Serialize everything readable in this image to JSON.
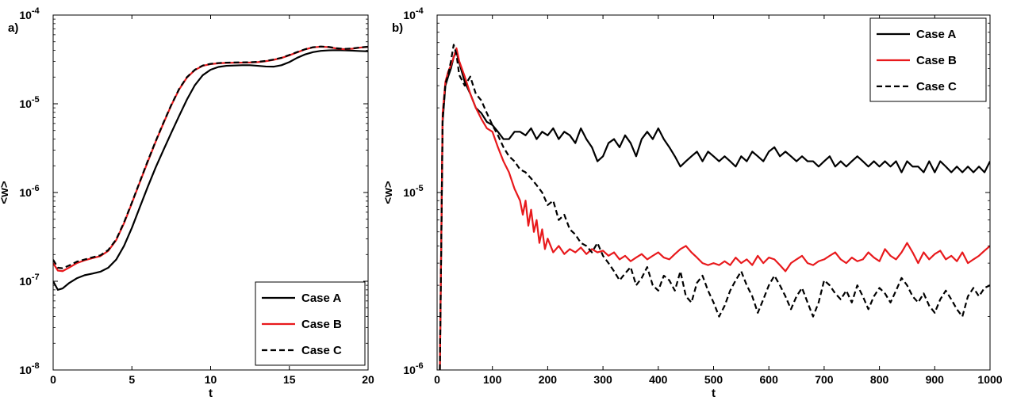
{
  "chart_data": [
    {
      "panel": "a)",
      "type": "line",
      "xlabel": "t",
      "ylabel": "<w>",
      "xlim": [
        0,
        20
      ],
      "ylim": [
        1e-08,
        0.0001
      ],
      "yscale": "log",
      "xticks": [
        "0",
        "5",
        "10",
        "15",
        "20"
      ],
      "yticks": [
        {
          "base": "10",
          "exp": "-8"
        },
        {
          "base": "10",
          "exp": "-7"
        },
        {
          "base": "10",
          "exp": "-6"
        },
        {
          "base": "10",
          "exp": "-5"
        },
        {
          "base": "10",
          "exp": "-4"
        }
      ],
      "legend_position": "bottom-right",
      "grid": false,
      "series": [
        {
          "name": "Case A",
          "color": "#000000",
          "dash": "solid",
          "x": [
            0,
            0.3,
            0.6,
            1,
            1.5,
            2,
            2.5,
            3,
            3.5,
            4,
            4.5,
            5,
            5.5,
            6,
            6.5,
            7,
            7.5,
            8,
            8.5,
            9,
            9.5,
            10,
            10.5,
            11,
            11.5,
            12,
            12.5,
            13,
            13.5,
            14,
            14.5,
            15,
            15.5,
            16,
            16.5,
            17,
            17.5,
            18,
            18.5,
            19,
            19.5,
            20
          ],
          "y": [
            1e-07,
            8e-08,
            8.3e-08,
            9.5e-08,
            1.08e-07,
            1.17e-07,
            1.22e-07,
            1.28e-07,
            1.42e-07,
            1.75e-07,
            2.5e-07,
            4e-07,
            6.8e-07,
            1.15e-06,
            1.9e-06,
            3e-06,
            4.7e-06,
            7.3e-06,
            1.12e-05,
            1.62e-05,
            2.1e-05,
            2.42e-05,
            2.6e-05,
            2.68e-05,
            2.7e-05,
            2.72e-05,
            2.72e-05,
            2.68e-05,
            2.63e-05,
            2.62e-05,
            2.72e-05,
            2.95e-05,
            3.3e-05,
            3.6e-05,
            3.82e-05,
            3.95e-05,
            4e-05,
            4.02e-05,
            4e-05,
            3.97e-05,
            3.93e-05,
            3.9e-05
          ]
        },
        {
          "name": "Case B",
          "color": "#e8191c",
          "dash": "solid",
          "x": [
            0,
            0.3,
            0.6,
            1,
            1.5,
            2,
            2.5,
            3,
            3.5,
            4,
            4.5,
            5,
            5.5,
            6,
            6.5,
            7,
            7.5,
            8,
            8.5,
            9,
            9.5,
            10,
            10.5,
            11,
            11.5,
            12,
            12.5,
            13,
            13.5,
            14,
            14.5,
            15,
            15.5,
            16,
            16.5,
            17,
            17.5,
            18,
            18.5,
            19,
            19.5,
            20
          ],
          "y": [
            1.6e-07,
            1.32e-07,
            1.3e-07,
            1.42e-07,
            1.6e-07,
            1.72e-07,
            1.82e-07,
            1.92e-07,
            2.2e-07,
            2.9e-07,
            4.5e-07,
            7.6e-07,
            1.3e-06,
            2.2e-06,
            3.7e-06,
            6e-06,
            9.6e-06,
            1.45e-05,
            1.98e-05,
            2.4e-05,
            2.68e-05,
            2.8e-05,
            2.86e-05,
            2.89e-05,
            2.9e-05,
            2.91e-05,
            2.92e-05,
            2.95e-05,
            3.02e-05,
            3.13e-05,
            3.28e-05,
            3.52e-05,
            3.8e-05,
            4.1e-05,
            4.32e-05,
            4.4e-05,
            4.35e-05,
            4.2e-05,
            4.12e-05,
            4.18e-05,
            4.3e-05,
            4.38e-05
          ]
        },
        {
          "name": "Case C",
          "color": "#000000",
          "dash": "dashed",
          "x": [
            0,
            0.3,
            0.6,
            1,
            1.5,
            2,
            2.5,
            3,
            3.5,
            4,
            4.5,
            5,
            5.5,
            6,
            6.5,
            7,
            7.5,
            8,
            8.5,
            9,
            9.5,
            10,
            10.5,
            11,
            11.5,
            12,
            12.5,
            13,
            13.5,
            14,
            14.5,
            15,
            15.5,
            16,
            16.5,
            17,
            17.5,
            18,
            18.5,
            19,
            19.5,
            20
          ],
          "y": [
            1.75e-07,
            1.42e-07,
            1.4e-07,
            1.5e-07,
            1.66e-07,
            1.76e-07,
            1.86e-07,
            1.96e-07,
            2.25e-07,
            2.95e-07,
            4.6e-07,
            7.7e-07,
            1.32e-06,
            2.25e-06,
            3.75e-06,
            6.1e-06,
            9.7e-06,
            1.47e-05,
            2e-05,
            2.42e-05,
            2.7e-05,
            2.82e-05,
            2.88e-05,
            2.91e-05,
            2.92e-05,
            2.93e-05,
            2.94e-05,
            2.97e-05,
            3.04e-05,
            3.15e-05,
            3.3e-05,
            3.55e-05,
            3.83e-05,
            4.12e-05,
            4.34e-05,
            4.42e-05,
            4.37e-05,
            4.23e-05,
            4.15e-05,
            4.2e-05,
            4.32e-05,
            4.4e-05
          ]
        }
      ]
    },
    {
      "panel": "b)",
      "type": "line",
      "xlabel": "t",
      "ylabel": "<w>",
      "xlim": [
        0,
        1000
      ],
      "ylim": [
        1e-06,
        0.0001
      ],
      "yscale": "log",
      "xticks": [
        "0",
        "100",
        "200",
        "300",
        "400",
        "500",
        "600",
        "700",
        "800",
        "900",
        "1000"
      ],
      "yticks": [
        {
          "base": "10",
          "exp": "-6"
        },
        {
          "base": "10",
          "exp": "-5"
        },
        {
          "base": "10",
          "exp": "-4"
        }
      ],
      "legend_position": "top-right",
      "grid": false,
      "series": [
        {
          "name": "Case A",
          "color": "#000000",
          "dash": "solid",
          "x": [
            5,
            10,
            15,
            20,
            25,
            30,
            35,
            40,
            50,
            60,
            70,
            80,
            90,
            100,
            110,
            120,
            130,
            140,
            150,
            160,
            170,
            180,
            190,
            200,
            210,
            220,
            230,
            240,
            250,
            260,
            270,
            280,
            290,
            300,
            310,
            320,
            330,
            340,
            350,
            360,
            370,
            380,
            390,
            400,
            410,
            420,
            430,
            440,
            450,
            460,
            470,
            480,
            490,
            500,
            510,
            520,
            530,
            540,
            550,
            560,
            570,
            580,
            590,
            600,
            610,
            620,
            630,
            640,
            650,
            660,
            670,
            680,
            690,
            700,
            710,
            720,
            730,
            740,
            750,
            760,
            770,
            780,
            790,
            800,
            810,
            820,
            830,
            840,
            850,
            860,
            870,
            880,
            890,
            900,
            910,
            920,
            930,
            940,
            950,
            960,
            970,
            980,
            990,
            1000
          ],
          "y": [
            1e-06,
            2.5e-05,
            4e-05,
            4.5e-05,
            5e-05,
            5.8e-05,
            6.2e-05,
            5.4e-05,
            4.2e-05,
            3.6e-05,
            3e-05,
            2.8e-05,
            2.5e-05,
            2.4e-05,
            2.2e-05,
            2e-05,
            2e-05,
            2.2e-05,
            2.2e-05,
            2.1e-05,
            2.3e-05,
            2e-05,
            2.2e-05,
            2.1e-05,
            2.3e-05,
            2e-05,
            2.2e-05,
            2.1e-05,
            1.9e-05,
            2.3e-05,
            2e-05,
            1.8e-05,
            1.5e-05,
            1.6e-05,
            1.9e-05,
            2e-05,
            1.8e-05,
            2.1e-05,
            1.9e-05,
            1.6e-05,
            2e-05,
            2.2e-05,
            2e-05,
            2.3e-05,
            2e-05,
            1.8e-05,
            1.6e-05,
            1.4e-05,
            1.5e-05,
            1.6e-05,
            1.7e-05,
            1.5e-05,
            1.7e-05,
            1.6e-05,
            1.5e-05,
            1.6e-05,
            1.5e-05,
            1.4e-05,
            1.6e-05,
            1.5e-05,
            1.7e-05,
            1.6e-05,
            1.5e-05,
            1.7e-05,
            1.8e-05,
            1.6e-05,
            1.7e-05,
            1.6e-05,
            1.5e-05,
            1.6e-05,
            1.5e-05,
            1.5e-05,
            1.4e-05,
            1.5e-05,
            1.6e-05,
            1.4e-05,
            1.5e-05,
            1.4e-05,
            1.5e-05,
            1.6e-05,
            1.5e-05,
            1.4e-05,
            1.5e-05,
            1.4e-05,
            1.5e-05,
            1.4e-05,
            1.5e-05,
            1.3e-05,
            1.5e-05,
            1.4e-05,
            1.4e-05,
            1.3e-05,
            1.5e-05,
            1.3e-05,
            1.5e-05,
            1.4e-05,
            1.3e-05,
            1.4e-05,
            1.3e-05,
            1.4e-05,
            1.3e-05,
            1.4e-05,
            1.3e-05,
            1.5e-05
          ]
        },
        {
          "name": "Case B",
          "color": "#e8191c",
          "dash": "solid",
          "x": [
            5,
            10,
            15,
            20,
            25,
            30,
            35,
            40,
            50,
            60,
            70,
            80,
            90,
            100,
            110,
            120,
            130,
            140,
            150,
            155,
            160,
            165,
            170,
            175,
            180,
            185,
            190,
            195,
            200,
            210,
            220,
            230,
            240,
            250,
            260,
            270,
            280,
            290,
            300,
            310,
            320,
            330,
            340,
            350,
            360,
            370,
            380,
            390,
            400,
            410,
            420,
            430,
            440,
            450,
            460,
            470,
            480,
            490,
            500,
            510,
            520,
            530,
            540,
            550,
            560,
            570,
            580,
            590,
            600,
            610,
            620,
            630,
            640,
            650,
            660,
            670,
            680,
            690,
            700,
            710,
            720,
            730,
            740,
            750,
            760,
            770,
            780,
            790,
            800,
            810,
            820,
            830,
            840,
            850,
            860,
            870,
            880,
            890,
            900,
            910,
            920,
            930,
            940,
            950,
            960,
            970,
            980,
            990,
            1000
          ],
          "y": [
            1e-06,
            2.8e-05,
            4.2e-05,
            4.8e-05,
            5.2e-05,
            5.8e-05,
            6.5e-05,
            5.5e-05,
            4.5e-05,
            3.6e-05,
            3e-05,
            2.6e-05,
            2.3e-05,
            2.2e-05,
            1.8e-05,
            1.5e-05,
            1.3e-05,
            1.05e-05,
            9e-06,
            7.5e-06,
            9e-06,
            6.5e-06,
            8e-06,
            6e-06,
            7e-06,
            5.2e-06,
            6.2e-06,
            4.8e-06,
            5.5e-06,
            4.6e-06,
            5e-06,
            4.5e-06,
            4.8e-06,
            4.6e-06,
            4.9e-06,
            4.5e-06,
            4.8e-06,
            4.6e-06,
            4.7e-06,
            4.4e-06,
            4.6e-06,
            4.2e-06,
            4.4e-06,
            4.1e-06,
            4.3e-06,
            4.5e-06,
            4.2e-06,
            4.4e-06,
            4.6e-06,
            4.3e-06,
            4.2e-06,
            4.5e-06,
            4.8e-06,
            5e-06,
            4.6e-06,
            4.3e-06,
            4e-06,
            3.9e-06,
            4e-06,
            3.9e-06,
            4.1e-06,
            3.9e-06,
            4.3e-06,
            4e-06,
            4.2e-06,
            3.9e-06,
            4.4e-06,
            4e-06,
            4.3e-06,
            4.2e-06,
            3.9e-06,
            3.6e-06,
            4e-06,
            4.2e-06,
            4.4e-06,
            4e-06,
            3.9e-06,
            4.1e-06,
            4.2e-06,
            4.4e-06,
            4.6e-06,
            4.2e-06,
            4e-06,
            4.3e-06,
            4.1e-06,
            4.2e-06,
            4.6e-06,
            4.3e-06,
            4.1e-06,
            4.8e-06,
            4.4e-06,
            4.2e-06,
            4.6e-06,
            5.2e-06,
            4.6e-06,
            4e-06,
            4.6e-06,
            4.2e-06,
            4.5e-06,
            4.7e-06,
            4.2e-06,
            4.4e-06,
            4.1e-06,
            4.6e-06,
            4e-06,
            4.2e-06,
            4.4e-06,
            4.7e-06,
            5e-06
          ]
        },
        {
          "name": "Case C",
          "color": "#000000",
          "dash": "dashed",
          "x": [
            5,
            10,
            15,
            20,
            25,
            30,
            35,
            40,
            50,
            60,
            70,
            80,
            90,
            100,
            110,
            120,
            130,
            140,
            150,
            160,
            170,
            180,
            190,
            200,
            210,
            220,
            230,
            240,
            250,
            260,
            270,
            280,
            290,
            300,
            310,
            320,
            330,
            340,
            350,
            360,
            370,
            380,
            390,
            400,
            410,
            420,
            430,
            440,
            450,
            460,
            470,
            480,
            490,
            500,
            510,
            520,
            530,
            540,
            550,
            560,
            570,
            580,
            590,
            600,
            610,
            620,
            630,
            640,
            650,
            660,
            670,
            680,
            690,
            700,
            710,
            720,
            730,
            740,
            750,
            760,
            770,
            780,
            790,
            800,
            810,
            820,
            830,
            840,
            850,
            860,
            870,
            880,
            890,
            900,
            910,
            920,
            930,
            940,
            950,
            960,
            970,
            980,
            990,
            1000
          ],
          "y": [
            1e-06,
            2.6e-05,
            4.1e-05,
            4.6e-05,
            5.5e-05,
            6.8e-05,
            6e-05,
            4.6e-05,
            4e-05,
            4.5e-05,
            3.6e-05,
            3.3e-05,
            2.8e-05,
            2.4e-05,
            2.1e-05,
            1.8e-05,
            1.6e-05,
            1.5e-05,
            1.35e-05,
            1.3e-05,
            1.2e-05,
            1.1e-05,
            1e-05,
            8.5e-06,
            9e-06,
            7e-06,
            7.5e-06,
            6.2e-06,
            5.8e-06,
            5.2e-06,
            5e-06,
            4.6e-06,
            5.2e-06,
            4.4e-06,
            4e-06,
            3.6e-06,
            3.2e-06,
            3.5e-06,
            3.8e-06,
            3e-06,
            3.3e-06,
            3.8e-06,
            3e-06,
            2.8e-06,
            3.4e-06,
            3.2e-06,
            2.8e-06,
            3.6e-06,
            2.6e-06,
            2.4e-06,
            3.1e-06,
            3.4e-06,
            2.8e-06,
            2.4e-06,
            2e-06,
            2.3e-06,
            2.8e-06,
            3.2e-06,
            3.6e-06,
            3e-06,
            2.6e-06,
            2.1e-06,
            2.5e-06,
            3e-06,
            3.4e-06,
            3e-06,
            2.6e-06,
            2.2e-06,
            2.6e-06,
            2.9e-06,
            2.4e-06,
            2e-06,
            2.4e-06,
            3.2e-06,
            3e-06,
            2.7e-06,
            2.5e-06,
            2.8e-06,
            2.4e-06,
            3e-06,
            2.6e-06,
            2.2e-06,
            2.6e-06,
            2.9e-06,
            2.7e-06,
            2.4e-06,
            2.8e-06,
            3.3e-06,
            3e-06,
            2.6e-06,
            2.4e-06,
            2.7e-06,
            2.3e-06,
            2.1e-06,
            2.5e-06,
            2.8e-06,
            2.5e-06,
            2.2e-06,
            2e-06,
            2.6e-06,
            2.9e-06,
            2.6e-06,
            2.9e-06,
            3e-06
          ]
        }
      ]
    }
  ]
}
